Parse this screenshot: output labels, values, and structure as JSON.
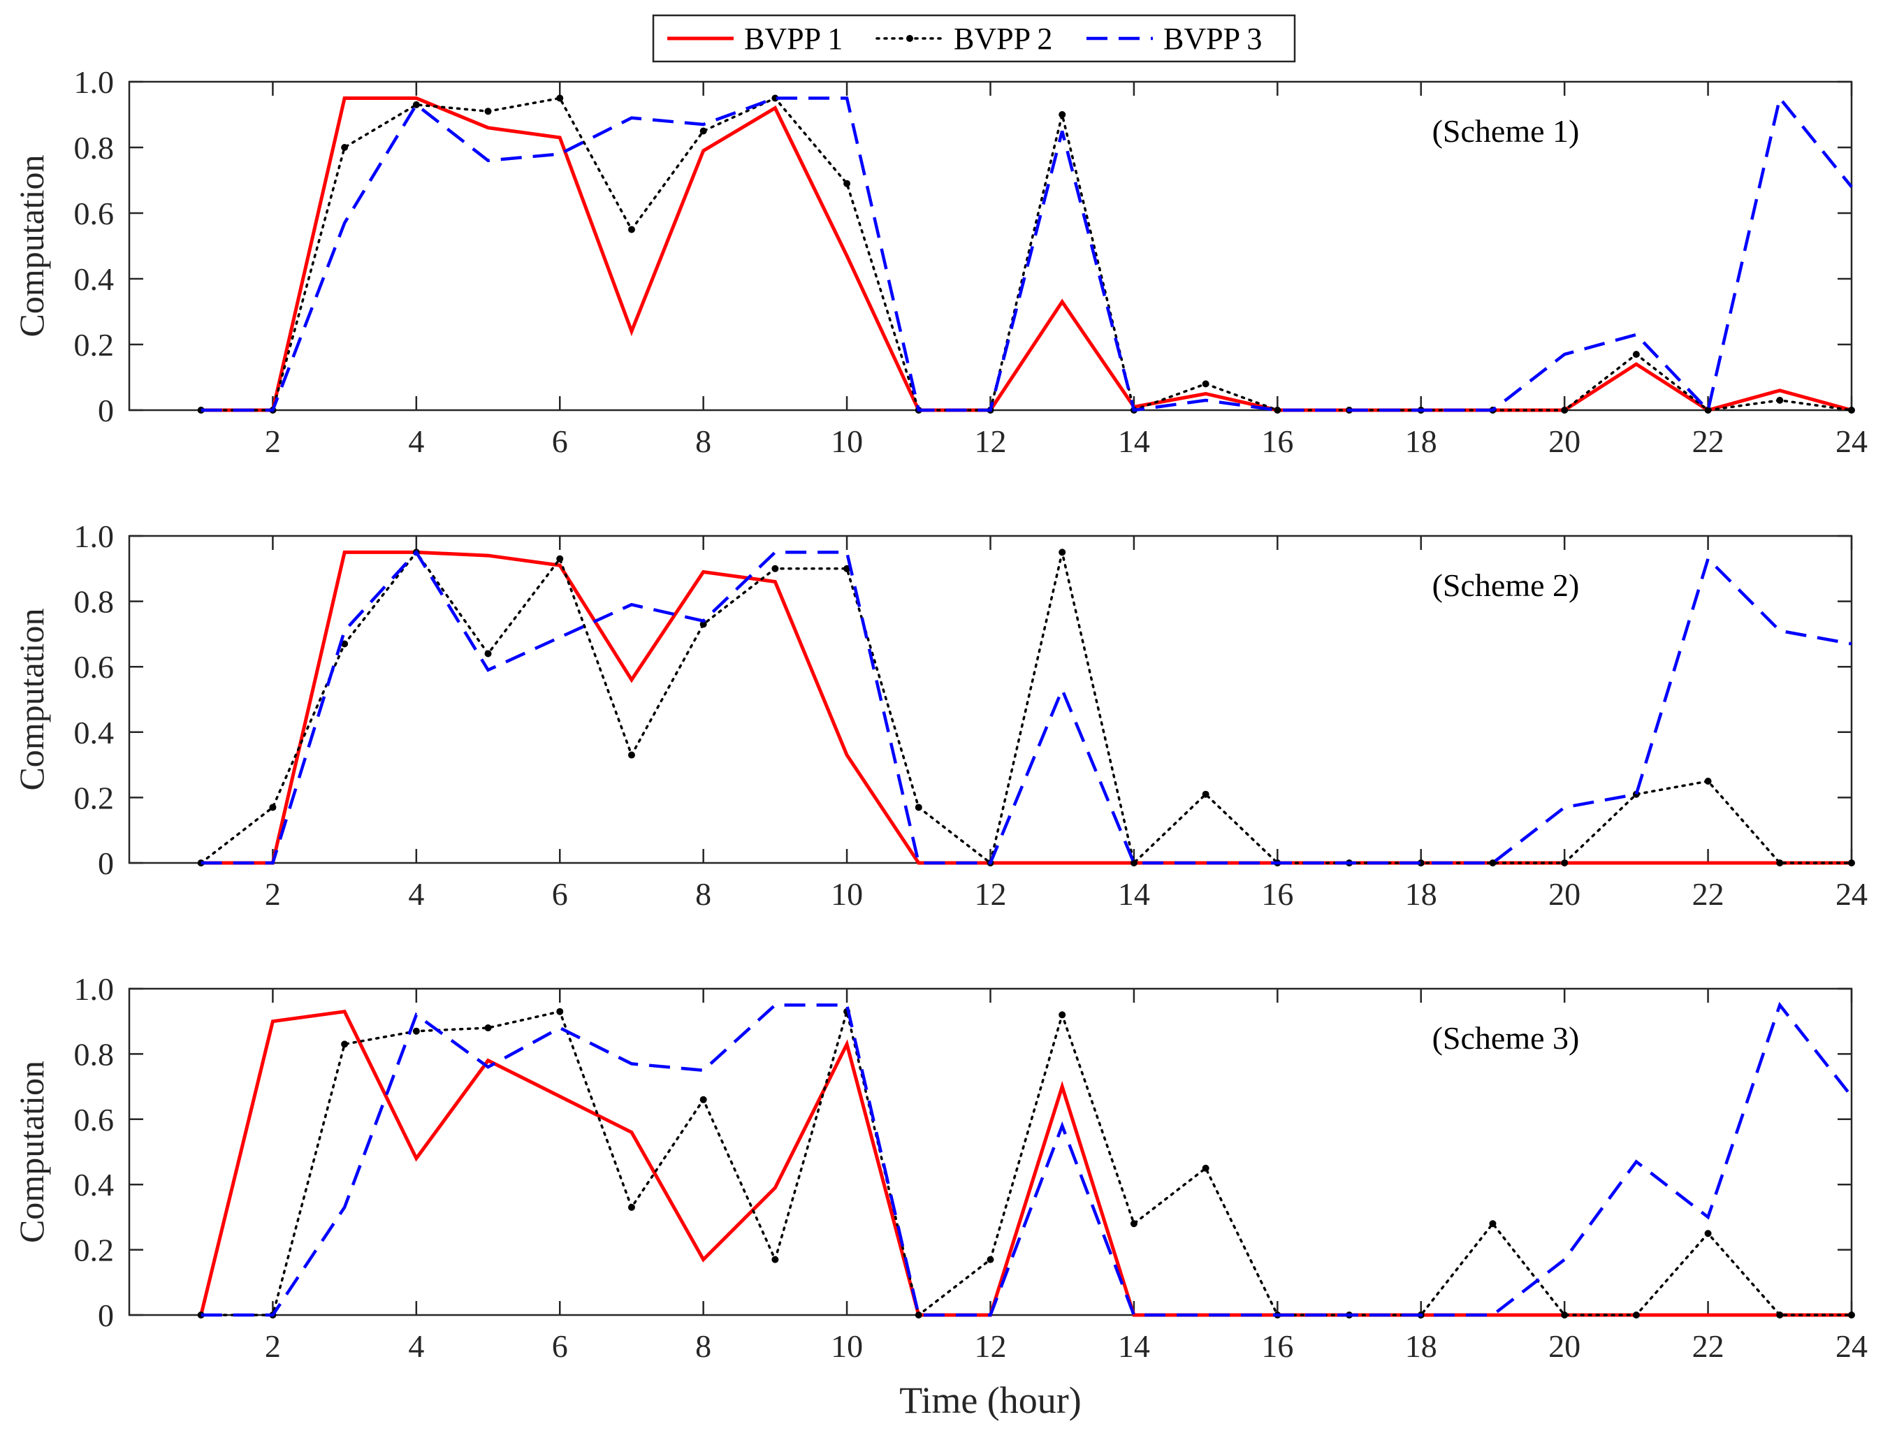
{
  "chart_data": {
    "type": "line",
    "xlabel": "Time (hour)",
    "ylabel": "Computation",
    "xlim": [
      0,
      24
    ],
    "ylim": [
      0,
      1.0
    ],
    "xticks": [
      2,
      4,
      6,
      8,
      10,
      12,
      14,
      16,
      18,
      20,
      22,
      24
    ],
    "yticks": [
      0,
      0.2,
      0.4,
      0.6,
      0.8,
      1.0
    ],
    "ytick_labels": [
      "0",
      "0.2",
      "0.4",
      "0.6",
      "0.8",
      "1.0"
    ],
    "legend": {
      "position": "top-center",
      "entries": [
        {
          "name": "BVPP 1",
          "color": "#ff0000",
          "style": "solid"
        },
        {
          "name": "BVPP 2",
          "color": "#000000",
          "style": "dotted-marker"
        },
        {
          "name": "BVPP 3",
          "color": "#0000ff",
          "style": "dashed"
        }
      ]
    },
    "x": [
      1,
      2,
      3,
      4,
      5,
      6,
      7,
      8,
      9,
      10,
      11,
      12,
      13,
      14,
      15,
      16,
      17,
      18,
      19,
      20,
      21,
      22,
      23,
      24
    ],
    "panels": [
      {
        "title": "(Scheme 1)",
        "series": [
          {
            "name": "BVPP 1",
            "values": [
              0,
              0,
              0.95,
              0.95,
              0.86,
              0.83,
              0.24,
              0.79,
              0.92,
              0.47,
              0,
              0,
              0.33,
              0.01,
              0.05,
              0,
              0,
              0,
              0,
              0,
              0.14,
              0,
              0.06,
              0
            ]
          },
          {
            "name": "BVPP 2",
            "values": [
              0,
              0,
              0.8,
              0.93,
              0.91,
              0.95,
              0.55,
              0.85,
              0.95,
              0.69,
              0,
              0,
              0.9,
              0,
              0.08,
              0,
              0,
              0,
              0,
              0,
              0.17,
              0,
              0.03,
              0
            ]
          },
          {
            "name": "BVPP 3",
            "values": [
              0,
              0,
              0.57,
              0.93,
              0.76,
              0.78,
              0.89,
              0.87,
              0.95,
              0.95,
              0,
              0,
              0.85,
              0,
              0.03,
              0,
              0,
              0,
              0,
              0.17,
              0.23,
              0,
              0.95,
              0.68
            ]
          }
        ]
      },
      {
        "title": "(Scheme 2)",
        "series": [
          {
            "name": "BVPP 1",
            "values": [
              0,
              0,
              0.95,
              0.95,
              0.94,
              0.91,
              0.56,
              0.89,
              0.86,
              0.33,
              0,
              0,
              0,
              0,
              0,
              0,
              0,
              0,
              0,
              0,
              0,
              0,
              0,
              0
            ]
          },
          {
            "name": "BVPP 2",
            "values": [
              0,
              0.17,
              0.67,
              0.95,
              0.64,
              0.93,
              0.33,
              0.73,
              0.9,
              0.9,
              0.17,
              0,
              0.95,
              0,
              0.21,
              0,
              0,
              0,
              0,
              0,
              0.21,
              0.25,
              0,
              0
            ]
          },
          {
            "name": "BVPP 3",
            "values": [
              0,
              0,
              0.71,
              0.95,
              0.59,
              0.69,
              0.79,
              0.74,
              0.95,
              0.95,
              0,
              0,
              0.53,
              0,
              0,
              0,
              0,
              0,
              0,
              0.17,
              0.21,
              0.93,
              0.71,
              0.67
            ]
          }
        ]
      },
      {
        "title": "(Scheme 3)",
        "series": [
          {
            "name": "BVPP 1",
            "values": [
              0,
              0.9,
              0.93,
              0.48,
              0.78,
              0.67,
              0.56,
              0.17,
              0.39,
              0.83,
              0,
              0,
              0.7,
              0,
              0,
              0,
              0,
              0,
              0,
              0,
              0,
              0,
              0,
              0
            ]
          },
          {
            "name": "BVPP 2",
            "values": [
              0,
              0,
              0.83,
              0.87,
              0.88,
              0.93,
              0.33,
              0.66,
              0.17,
              0.93,
              0,
              0.17,
              0.92,
              0.28,
              0.45,
              0,
              0,
              0,
              0.28,
              0,
              0,
              0.25,
              0,
              0
            ]
          },
          {
            "name": "BVPP 3",
            "values": [
              0,
              0,
              0.33,
              0.92,
              0.76,
              0.88,
              0.77,
              0.75,
              0.95,
              0.95,
              0,
              0,
              0.58,
              0,
              0,
              0,
              0,
              0,
              0,
              0.17,
              0.47,
              0.3,
              0.95,
              0.67
            ]
          }
        ]
      }
    ]
  }
}
